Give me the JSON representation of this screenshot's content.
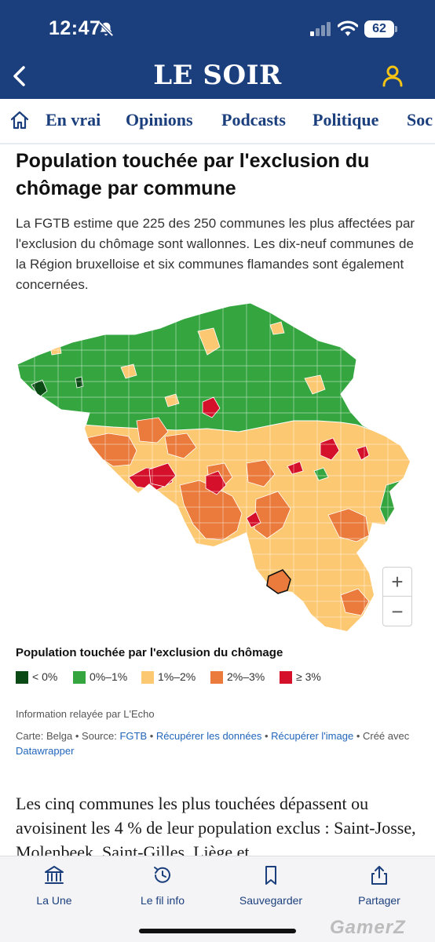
{
  "status_bar": {
    "time": "12:47",
    "battery": "62",
    "icons": [
      "bell-slash-icon",
      "signal-icon",
      "wifi-icon",
      "battery-icon"
    ]
  },
  "header": {
    "brand": "LE SOIR",
    "icons": [
      "back-chevron-icon",
      "user-icon"
    ],
    "colors": {
      "background": "#1b3f7d",
      "accent": "#f3c316"
    }
  },
  "nav": {
    "items": [
      {
        "label": "En vrai"
      },
      {
        "label": "Opinions"
      },
      {
        "label": "Podcasts"
      },
      {
        "label": "Politique"
      },
      {
        "label": "Soc"
      }
    ]
  },
  "article": {
    "headline": "Population touchée par l'exclusion du chômage par commune",
    "intro": "La FGTB estime que 225 des 250 communes les plus affectées par l'exclusion du chômage sont wallonnes. Les dix-neuf communes de la Région bruxelloise et six communes flamandes sont également concernées.",
    "body": "Les cinq communes les plus touchées dépassent ou avoisinent les 4 % de leur population exclus : Saint-Josse, Molenbeek, Saint-Gilles, Liège et"
  },
  "map": {
    "zoom_in": "+",
    "zoom_out": "−",
    "legend_title": "Population touchée par l'exclusion du chômage",
    "legend": [
      {
        "label": "< 0%",
        "color": "#0b4a14"
      },
      {
        "label": "0%–1%",
        "color": "#34a53f"
      },
      {
        "label": "1%–2%",
        "color": "#fdc872"
      },
      {
        "label": "2%–3%",
        "color": "#ea7b3c"
      },
      {
        "label": "≥ 3%",
        "color": "#d4102a"
      }
    ],
    "relay": "Information relayée par L'Echo",
    "credits": {
      "prefix": "Carte: Belga • Source: ",
      "source": "FGTB",
      "sep1": " • ",
      "download_data": "Récupérer les données",
      "sep2": " • ",
      "download_image": "Récupérer l'image",
      "sep3": " • Créé avec ",
      "tool": "Datawrapper"
    }
  },
  "tabbar": {
    "tabs": [
      {
        "label": "La Une",
        "icon": "bank-icon"
      },
      {
        "label": "Le fil info",
        "icon": "clock-refresh-icon"
      },
      {
        "label": "Sauvegarder",
        "icon": "bookmark-icon"
      },
      {
        "label": "Partager",
        "icon": "share-icon"
      }
    ]
  },
  "watermark": "GamerZ"
}
